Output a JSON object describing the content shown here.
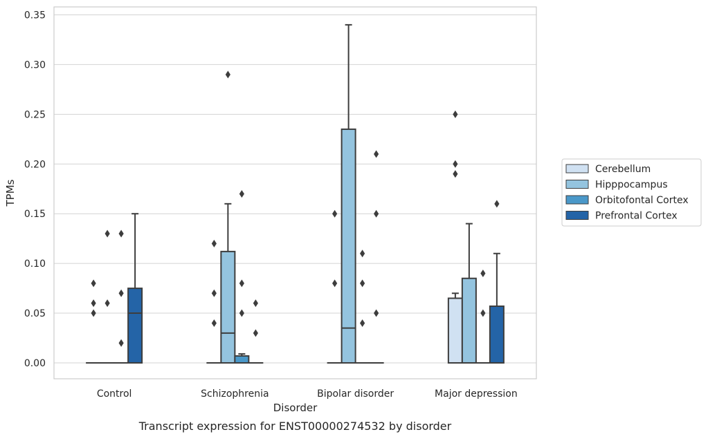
{
  "caption": "Transcript expression for ENST00000274532 by disorder",
  "chart_data": {
    "type": "box",
    "xlabel": "Disorder",
    "ylabel": "TPMs",
    "ylim": [
      -0.016,
      0.358
    ],
    "yticks": [
      "0.00",
      "0.05",
      "0.10",
      "0.15",
      "0.20",
      "0.25",
      "0.30",
      "0.35"
    ],
    "grid": "horizontal",
    "legend_placement": "right",
    "categories": [
      "Control",
      "Schizophrenia",
      "Bipolar disorder",
      "Major depression"
    ],
    "series": [
      {
        "name": "Cerebellum",
        "color": "#d0e1f2",
        "boxes": [
          {
            "q1": 0,
            "median": 0,
            "q3": 0,
            "whisker_low": 0,
            "whisker_high": 0,
            "outliers": [
              0.05,
              0.06,
              0.08
            ]
          },
          {
            "q1": 0,
            "median": 0,
            "q3": 0,
            "whisker_low": 0,
            "whisker_high": 0,
            "outliers": [
              0.04,
              0.07,
              0.12
            ]
          },
          {
            "q1": 0,
            "median": 0,
            "q3": 0,
            "whisker_low": 0,
            "whisker_high": 0,
            "outliers": [
              0.08,
              0.15
            ]
          },
          {
            "q1": 0,
            "median": 0,
            "q3": 0.065,
            "whisker_low": 0,
            "whisker_high": 0.07,
            "outliers": [
              0.19,
              0.2,
              0.25
            ]
          }
        ]
      },
      {
        "name": "Hipppocampus",
        "color": "#94c4df",
        "boxes": [
          {
            "q1": 0,
            "median": 0,
            "q3": 0,
            "whisker_low": 0,
            "whisker_high": 0,
            "outliers": [
              0.06,
              0.13
            ]
          },
          {
            "q1": 0,
            "median": 0.03,
            "q3": 0.112,
            "whisker_low": 0,
            "whisker_high": 0.16,
            "outliers": [
              0.29
            ]
          },
          {
            "q1": 0,
            "median": 0.035,
            "q3": 0.235,
            "whisker_low": 0,
            "whisker_high": 0.34,
            "outliers": []
          },
          {
            "q1": 0,
            "median": 0,
            "q3": 0.085,
            "whisker_low": 0,
            "whisker_high": 0.14,
            "outliers": []
          }
        ]
      },
      {
        "name": "Orbitofontal Cortex",
        "color": "#4a98c9",
        "boxes": [
          {
            "q1": 0,
            "median": 0,
            "q3": 0,
            "whisker_low": 0,
            "whisker_high": 0,
            "outliers": [
              0.02,
              0.07,
              0.13
            ]
          },
          {
            "q1": 0,
            "median": 0,
            "q3": 0.007,
            "whisker_low": 0,
            "whisker_high": 0.009,
            "outliers": [
              0.05,
              0.08,
              0.17
            ]
          },
          {
            "q1": 0,
            "median": 0,
            "q3": 0,
            "whisker_low": 0,
            "whisker_high": 0,
            "outliers": [
              0.04,
              0.08,
              0.11
            ]
          },
          {
            "q1": 0,
            "median": 0,
            "q3": 0,
            "whisker_low": 0,
            "whisker_high": 0,
            "outliers": [
              0.05,
              0.09
            ]
          }
        ]
      },
      {
        "name": "Prefrontal Cortex",
        "color": "#2464a7",
        "boxes": [
          {
            "q1": 0,
            "median": 0.05,
            "q3": 0.075,
            "whisker_low": 0,
            "whisker_high": 0.15,
            "outliers": []
          },
          {
            "q1": 0,
            "median": 0,
            "q3": 0,
            "whisker_low": 0,
            "whisker_high": 0,
            "outliers": [
              0.03,
              0.06
            ]
          },
          {
            "q1": 0,
            "median": 0,
            "q3": 0,
            "whisker_low": 0,
            "whisker_high": 0,
            "outliers": [
              0.05,
              0.15,
              0.21
            ]
          },
          {
            "q1": 0,
            "median": 0,
            "q3": 0.057,
            "whisker_low": 0,
            "whisker_high": 0.11,
            "outliers": [
              0.16
            ]
          }
        ]
      }
    ]
  }
}
